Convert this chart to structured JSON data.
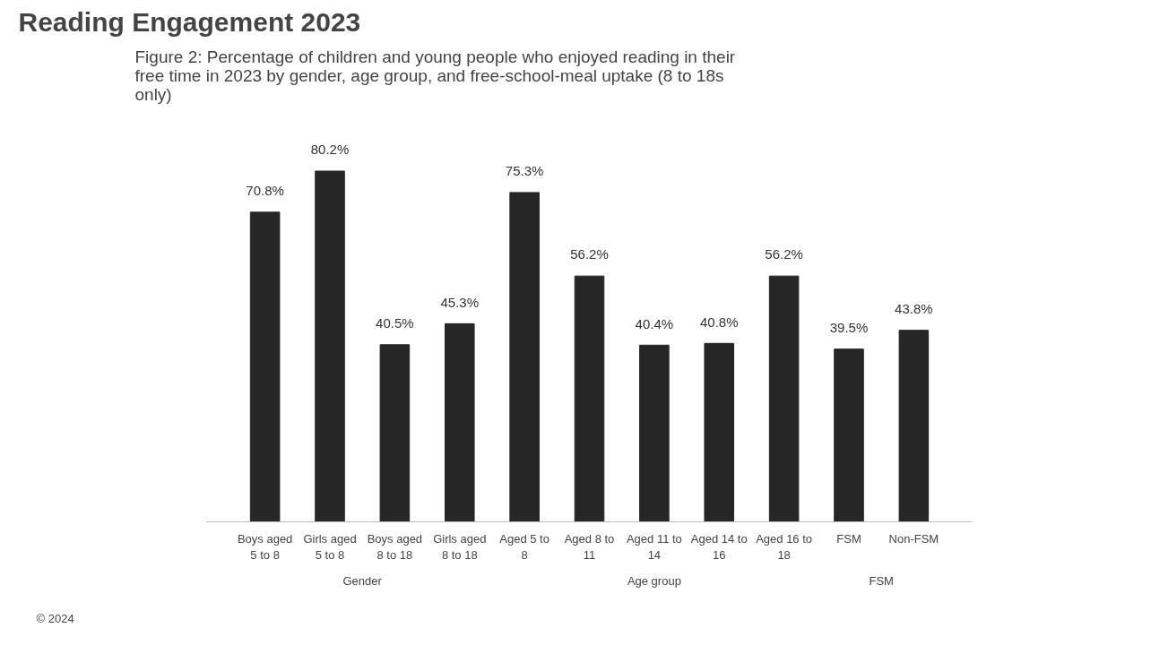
{
  "chart_data": {
    "type": "bar",
    "title": "Reading Engagement 2023",
    "subtitle": "Figure 2: Percentage of children and young people who enjoyed reading in their free time in 2023 by gender, age group, and free-school-meal uptake (8 to 18s only)",
    "categories": [
      "Boys aged 5 to 8",
      "Girls aged 5 to 8",
      "Boys aged 8 to 18",
      "Girls aged 8 to 18",
      "Aged 5 to 8",
      "Aged 8 to 11",
      "Aged 11 to 14",
      "Aged 14 to 16",
      "Aged 16 to 18",
      "FSM",
      "Non-FSM"
    ],
    "values": [
      70.8,
      80.2,
      40.5,
      45.3,
      75.3,
      56.2,
      40.4,
      40.8,
      56.2,
      39.5,
      43.8
    ],
    "value_labels": [
      "70.8%",
      "80.2%",
      "40.5%",
      "45.3%",
      "75.3%",
      "56.2%",
      "40.4%",
      "40.8%",
      "56.2%",
      "39.5%",
      "43.8%"
    ],
    "color": "#262626",
    "grid": false,
    "annotations": [
      "Gender",
      "Age group",
      "FSM",
      "© 2024"
    ]
  }
}
